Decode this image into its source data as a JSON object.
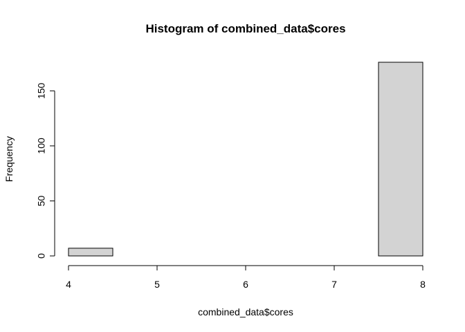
{
  "chart_data": {
    "type": "bar",
    "title": "Histogram of combined_data$cores",
    "xlabel": "combined_data$cores",
    "ylabel": "Frequency",
    "xlim": [
      4,
      8
    ],
    "ylim": [
      0,
      176
    ],
    "bin_width": 0.5,
    "bins": [
      {
        "start": 4.0,
        "end": 4.5,
        "count": 7
      },
      {
        "start": 4.5,
        "end": 5.0,
        "count": 0
      },
      {
        "start": 5.0,
        "end": 5.5,
        "count": 0
      },
      {
        "start": 5.5,
        "end": 6.0,
        "count": 0
      },
      {
        "start": 6.0,
        "end": 6.5,
        "count": 0
      },
      {
        "start": 6.5,
        "end": 7.0,
        "count": 0
      },
      {
        "start": 7.0,
        "end": 7.5,
        "count": 0
      },
      {
        "start": 7.5,
        "end": 8.0,
        "count": 176
      }
    ],
    "x_ticks": [
      4,
      5,
      6,
      7,
      8
    ],
    "y_ticks": [
      0,
      50,
      100,
      150
    ],
    "grid": false,
    "bar_color": "#d3d3d3",
    "border_color": "#000000"
  }
}
